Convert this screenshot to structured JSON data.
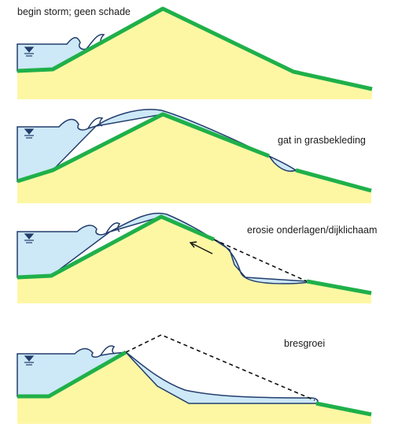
{
  "panels": [
    {
      "caption": "begin storm; geen schade"
    },
    {
      "caption": "gat in grasbekleding"
    },
    {
      "caption": "erosie onderlagen/dijklichaam"
    },
    {
      "caption": "bresgroei"
    }
  ],
  "colors": {
    "dike_body": "#fdf7a4",
    "water": "#cde8f6",
    "grass": "#1fb04a",
    "outline": "#233d6d"
  }
}
